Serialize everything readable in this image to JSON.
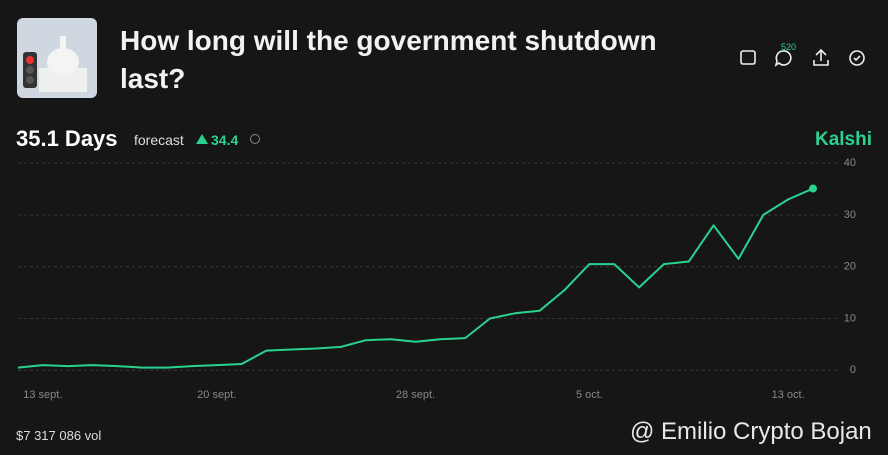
{
  "header": {
    "title": "How long will the government shutdown last?",
    "comments": "520"
  },
  "summary": {
    "value": "35.1 Days",
    "caption": "forecast",
    "change": "34.4",
    "brand": "Kalshi"
  },
  "footer": {
    "volume": "$7 317 086 vol",
    "watermark": "@ Emilio Crypto Bojan"
  },
  "chart_data": {
    "type": "line",
    "color": "#2bd28f",
    "x": [
      "09-12",
      "09-13",
      "09-14",
      "09-15",
      "09-16",
      "09-17",
      "09-18",
      "09-19",
      "09-20",
      "09-21",
      "09-22",
      "09-23",
      "09-24",
      "09-25",
      "09-26",
      "09-27",
      "09-28",
      "09-29",
      "09-30",
      "10-01",
      "10-02",
      "10-03",
      "10-04",
      "10-05",
      "10-06",
      "10-07",
      "10-08",
      "10-09",
      "10-10",
      "10-11",
      "10-12",
      "10-13",
      "10-14"
    ],
    "values": [
      0.5,
      1,
      0.8,
      1,
      0.8,
      0.5,
      0.5,
      0.8,
      1,
      1.2,
      3.8,
      4,
      4.2,
      4.5,
      5.8,
      6,
      5.5,
      6,
      6.2,
      10,
      11,
      11.5,
      15.5,
      20.5,
      20.5,
      16,
      20.5,
      21,
      28,
      21.5,
      30,
      33,
      35.1
    ],
    "xlim": [
      "09-12",
      "10-14"
    ],
    "xticks": [
      {
        "value": "09-13",
        "label": "13 sept."
      },
      {
        "value": "09-20",
        "label": "20 sept."
      },
      {
        "value": "09-28",
        "label": "28 sept."
      },
      {
        "value": "10-05",
        "label": "5 oct."
      },
      {
        "value": "10-13",
        "label": "13 oct."
      }
    ],
    "ylim": [
      -1.5,
      41
    ],
    "yticks": [
      0,
      10,
      20,
      30,
      40
    ],
    "grid": true
  }
}
